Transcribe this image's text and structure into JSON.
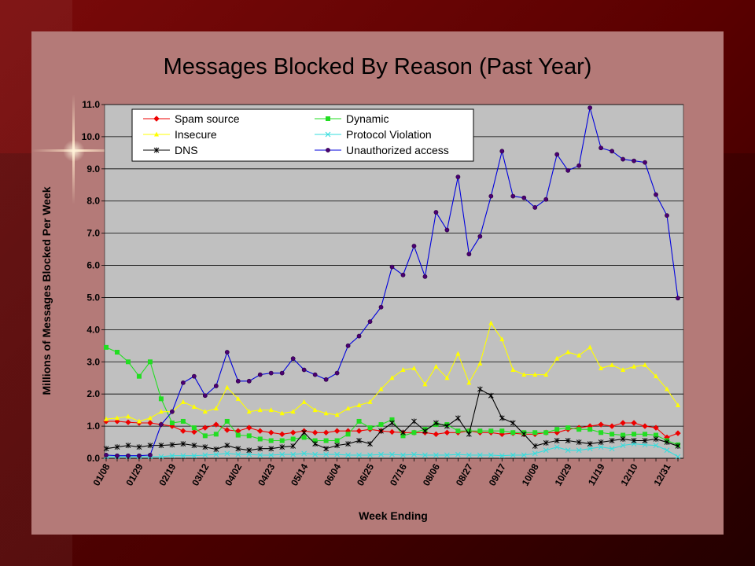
{
  "chart_data": {
    "type": "line",
    "title": "Messages Blocked By Reason (Past Year)",
    "xlabel": "Week Ending",
    "ylabel": "Millions of Messages Blocked Per Week",
    "ylim": [
      0,
      11
    ],
    "yticks": [
      "0.0",
      "1.0",
      "2.0",
      "3.0",
      "4.0",
      "5.0",
      "6.0",
      "7.0",
      "8.0",
      "9.0",
      "10.0",
      "11.0"
    ],
    "x_tick_labels": [
      "01/08",
      "01/29",
      "02/19",
      "03/12",
      "04/02",
      "04/23",
      "05/14",
      "06/04",
      "06/25",
      "07/16",
      "08/06",
      "08/27",
      "09/17",
      "10/08",
      "10/29",
      "11/19",
      "12/10",
      "12/31"
    ],
    "x_tick_every": 3,
    "grid": true,
    "legend_position": "top-left",
    "series": [
      {
        "name": "Spam source",
        "color": "#ee0000",
        "marker": "diamond",
        "values": [
          1.15,
          1.15,
          1.12,
          1.1,
          1.1,
          1.05,
          1.0,
          0.85,
          0.82,
          0.95,
          1.05,
          0.88,
          0.85,
          0.95,
          0.85,
          0.8,
          0.75,
          0.8,
          0.85,
          0.8,
          0.8,
          0.85,
          0.85,
          0.85,
          0.9,
          0.85,
          0.82,
          0.8,
          0.8,
          0.8,
          0.75,
          0.8,
          0.8,
          0.85,
          0.8,
          0.8,
          0.75,
          0.78,
          0.75,
          0.75,
          0.8,
          0.8,
          0.9,
          0.95,
          1.0,
          1.05,
          1.0,
          1.1,
          1.1,
          1.0,
          0.95,
          0.65,
          0.78
        ]
      },
      {
        "name": "Dynamic",
        "color": "#22dd22",
        "marker": "square",
        "values": [
          3.45,
          3.3,
          3.0,
          2.55,
          3.0,
          1.85,
          1.1,
          1.15,
          0.95,
          0.7,
          0.75,
          1.15,
          0.72,
          0.7,
          0.6,
          0.55,
          0.55,
          0.6,
          0.65,
          0.55,
          0.55,
          0.55,
          0.75,
          1.15,
          0.95,
          1.05,
          1.2,
          0.7,
          0.8,
          0.9,
          1.05,
          1.05,
          0.85,
          0.85,
          0.85,
          0.85,
          0.85,
          0.8,
          0.8,
          0.8,
          0.8,
          0.9,
          0.95,
          0.9,
          0.9,
          0.8,
          0.75,
          0.72,
          0.75,
          0.75,
          0.72,
          0.55,
          0.42
        ]
      },
      {
        "name": "Insecure",
        "color": "#ffff00",
        "marker": "triangle",
        "values": [
          1.22,
          1.25,
          1.3,
          1.15,
          1.25,
          1.45,
          1.45,
          1.75,
          1.6,
          1.45,
          1.55,
          2.2,
          1.85,
          1.45,
          1.5,
          1.5,
          1.4,
          1.45,
          1.75,
          1.5,
          1.4,
          1.35,
          1.55,
          1.65,
          1.75,
          2.15,
          2.5,
          2.75,
          2.8,
          2.3,
          2.85,
          2.5,
          3.25,
          2.35,
          2.95,
          4.2,
          3.7,
          2.75,
          2.6,
          2.6,
          2.6,
          3.1,
          3.3,
          3.2,
          3.45,
          2.8,
          2.9,
          2.75,
          2.85,
          2.9,
          2.55,
          2.15,
          1.65
        ]
      },
      {
        "name": "Protocol Violation",
        "color": "#33dddd",
        "marker": "x",
        "values": [
          0.05,
          0.05,
          0.05,
          0.05,
          0.05,
          0.05,
          0.08,
          0.08,
          0.08,
          0.1,
          0.12,
          0.15,
          0.12,
          0.12,
          0.1,
          0.1,
          0.12,
          0.12,
          0.15,
          0.12,
          0.12,
          0.12,
          0.1,
          0.1,
          0.1,
          0.12,
          0.12,
          0.1,
          0.12,
          0.1,
          0.1,
          0.1,
          0.12,
          0.1,
          0.1,
          0.1,
          0.08,
          0.1,
          0.1,
          0.15,
          0.25,
          0.35,
          0.25,
          0.25,
          0.3,
          0.35,
          0.3,
          0.4,
          0.45,
          0.42,
          0.4,
          0.25,
          0.05
        ]
      },
      {
        "name": "DNS",
        "color": "#000000",
        "marker": "star",
        "values": [
          0.3,
          0.35,
          0.4,
          0.35,
          0.4,
          0.4,
          0.42,
          0.45,
          0.4,
          0.35,
          0.28,
          0.4,
          0.3,
          0.25,
          0.3,
          0.3,
          0.35,
          0.38,
          0.8,
          0.45,
          0.3,
          0.4,
          0.45,
          0.55,
          0.45,
          0.85,
          1.1,
          0.8,
          1.15,
          0.85,
          1.1,
          1.0,
          1.25,
          0.75,
          2.15,
          1.95,
          1.25,
          1.1,
          0.75,
          0.38,
          0.48,
          0.55,
          0.55,
          0.5,
          0.45,
          0.5,
          0.55,
          0.6,
          0.55,
          0.55,
          0.6,
          0.5,
          0.38
        ]
      },
      {
        "name": "Unauthorized access",
        "color": "#0000dd",
        "marker": "circle",
        "values": [
          0.1,
          0.08,
          0.08,
          0.08,
          0.1,
          1.05,
          1.45,
          2.35,
          2.55,
          1.95,
          2.25,
          3.3,
          2.4,
          2.4,
          2.6,
          2.65,
          2.65,
          3.1,
          2.75,
          2.6,
          2.45,
          2.65,
          3.5,
          3.8,
          4.25,
          4.7,
          5.95,
          5.7,
          6.6,
          5.65,
          7.65,
          7.1,
          8.75,
          6.35,
          6.9,
          8.15,
          9.55,
          8.15,
          8.1,
          7.8,
          8.05,
          9.45,
          8.95,
          9.1,
          10.9,
          9.65,
          9.55,
          9.3,
          9.25,
          9.2,
          8.2,
          7.55,
          4.98
        ]
      }
    ]
  }
}
